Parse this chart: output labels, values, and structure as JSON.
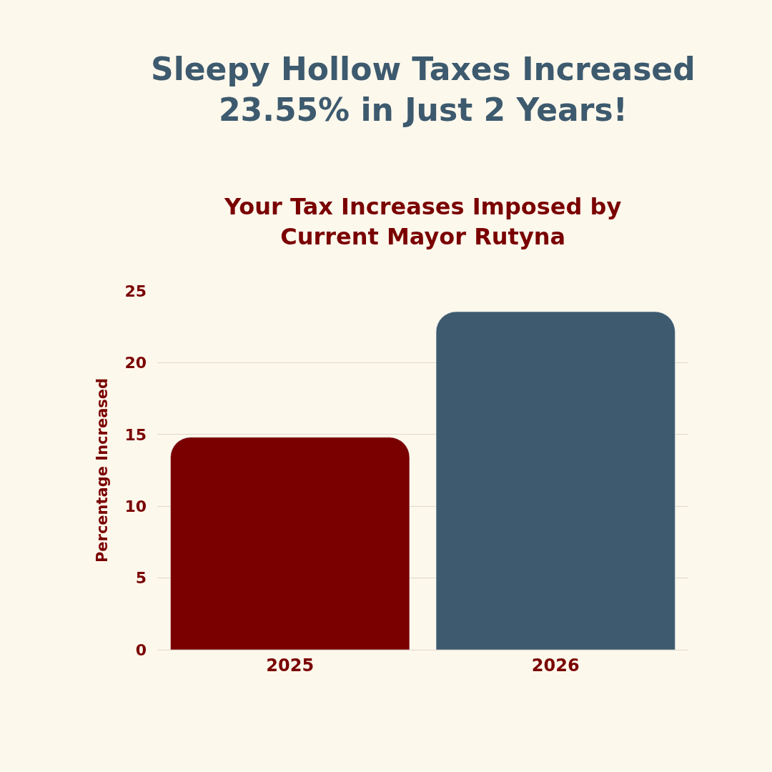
{
  "chart_data": {
    "type": "bar",
    "title": "Sleepy Hollow Taxes Increased 23.55% in Just 2 Years!",
    "subtitle": "Your Tax Increases Imposed by Current Mayor Rutyna",
    "ylabel": "Percentage Increased",
    "categories": [
      "2025",
      "2026"
    ],
    "values": [
      14.8,
      23.55
    ],
    "colors": [
      "#7a0000",
      "#3d5a6e"
    ],
    "ylim": [
      0,
      25
    ],
    "yticks": [
      0,
      5,
      10,
      15,
      20,
      25
    ],
    "grid": "y"
  }
}
